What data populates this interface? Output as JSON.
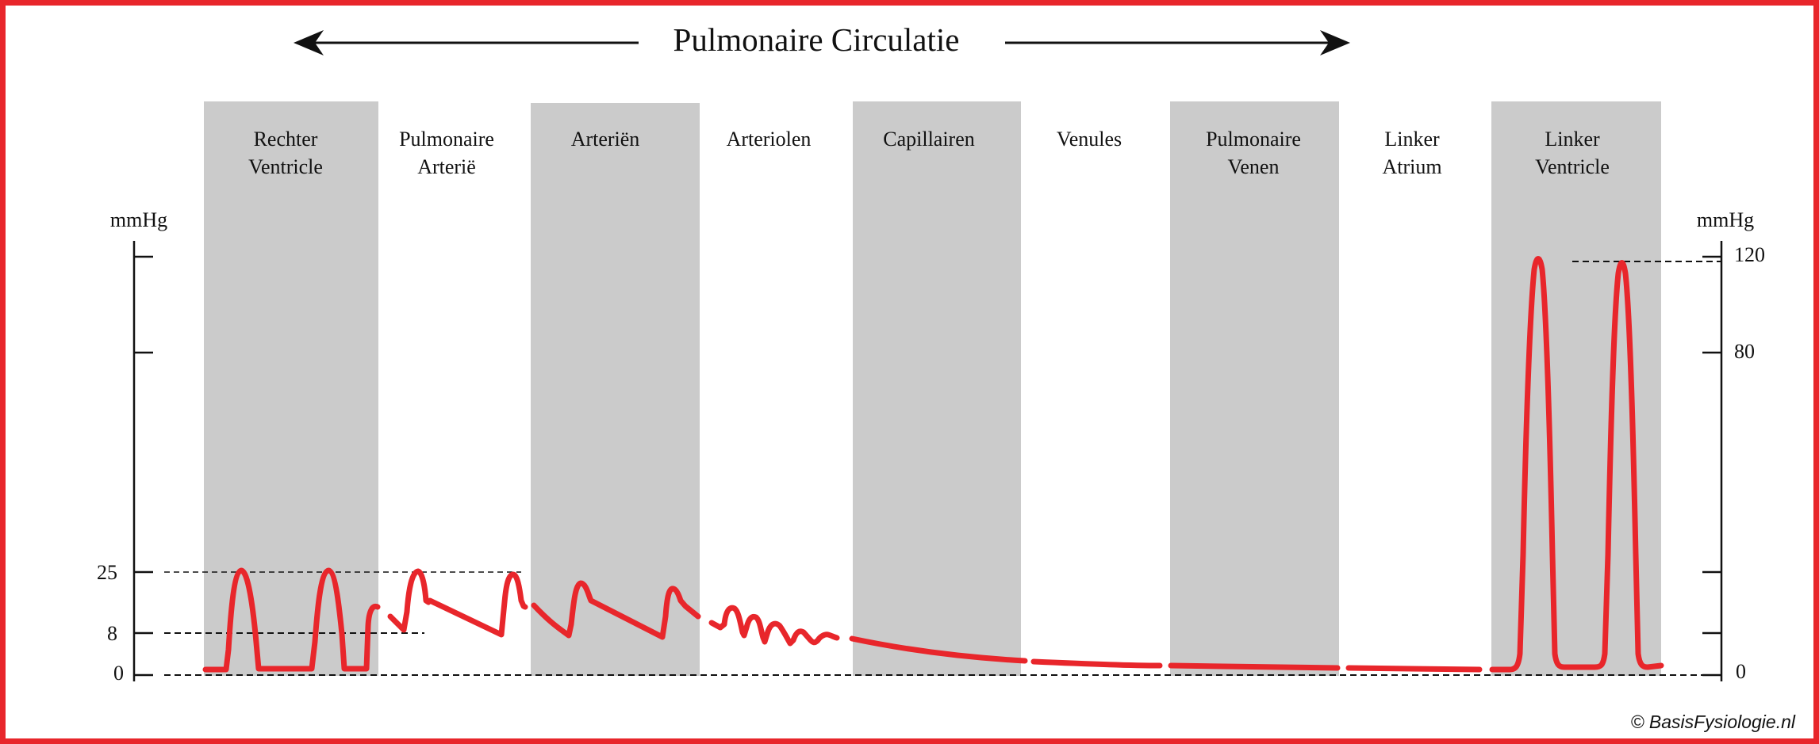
{
  "title": "Pulmonaire Circulatie",
  "colors": {
    "frame": "#e8262b",
    "band": "#cbcbcb",
    "trace": "#e8262b",
    "ink": "#111111"
  },
  "regions": [
    {
      "id": "rechter-ventricle",
      "lines": [
        "Rechter",
        "Ventricle"
      ],
      "shaded": true
    },
    {
      "id": "pulmonaire-arterie",
      "lines": [
        "Pulmonaire",
        "Arterië"
      ],
      "shaded": false
    },
    {
      "id": "arterien",
      "lines": [
        "Arteriën"
      ],
      "shaded": true
    },
    {
      "id": "arteriolen",
      "lines": [
        "Arteriolen"
      ],
      "shaded": false
    },
    {
      "id": "capillairen",
      "lines": [
        "Capillairen"
      ],
      "shaded": true
    },
    {
      "id": "venules",
      "lines": [
        "Venules"
      ],
      "shaded": false
    },
    {
      "id": "pulmonaire-venen",
      "lines": [
        "Pulmonaire",
        "Venen"
      ],
      "shaded": true
    },
    {
      "id": "linker-atrium",
      "lines": [
        "Linker",
        "Atrium"
      ],
      "shaded": false
    },
    {
      "id": "linker-ventricle",
      "lines": [
        "Linker",
        "Ventricle"
      ],
      "shaded": true
    }
  ],
  "left_axis": {
    "unit": "mmHg",
    "ticks": [
      {
        "value": 0,
        "label": "0"
      },
      {
        "value": 8,
        "label": "8"
      },
      {
        "value": 25,
        "label": "25"
      },
      {
        "value": 80,
        "label": ""
      },
      {
        "value": 120,
        "label": ""
      }
    ]
  },
  "right_axis": {
    "unit": "mmHg",
    "ticks": [
      {
        "value": 0,
        "label": "0"
      },
      {
        "value": 8,
        "label": ""
      },
      {
        "value": 25,
        "label": ""
      },
      {
        "value": 80,
        "label": "80"
      },
      {
        "value": 120,
        "label": "120"
      }
    ]
  },
  "reference_lines_mmHg": [
    0,
    8,
    25,
    120
  ],
  "pressure_curve": {
    "unit": "mmHg",
    "rechter_ventricle": {
      "systolic": 25,
      "diastolic": 1,
      "beats": 2
    },
    "pulmonaire_arterie": {
      "systolic": 25,
      "diastolic": 8
    },
    "arterien": {
      "peak": 18,
      "trough": 7
    },
    "arteriolen": {
      "start": 14,
      "end": 8
    },
    "capillairen": {
      "start": 8,
      "end": 4
    },
    "venules": {
      "end": 3
    },
    "pulmonaire_venen": {
      "end": 2
    },
    "linker_atrium": {
      "value": 1
    },
    "linker_ventricle": {
      "systolic": 120,
      "diastolic": 1,
      "beats": 2
    }
  },
  "credit": "© BasisFysiologie.nl"
}
